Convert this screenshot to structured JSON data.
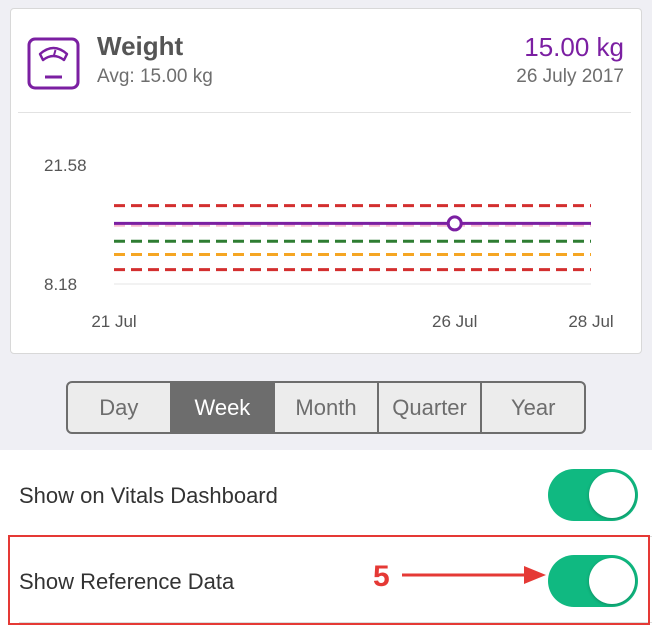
{
  "header": {
    "title": "Weight",
    "avg": "Avg: 15.00 kg",
    "value": "15.00 kg",
    "date": "26 July 2017"
  },
  "chart_data": {
    "type": "line",
    "y_ticks": [
      "21.58",
      "8.18"
    ],
    "x_ticks": [
      "21 Jul",
      "26 Jul",
      "28 Jul"
    ],
    "ylim": [
      8.18,
      21.58
    ],
    "series": [
      {
        "x": [
          "21 Jul",
          "26 Jul",
          "28 Jul"
        ],
        "values": [
          15.0,
          15.0,
          15.0
        ],
        "color": "#7b1fa2"
      }
    ],
    "marker": {
      "x": "26 Jul",
      "value": 15.0
    },
    "reference_lines": [
      {
        "value": 17.0,
        "color": "#d32f2f"
      },
      {
        "value": 14.8,
        "color": "#f8bbd0"
      },
      {
        "value": 13.0,
        "color": "#2e7d32"
      },
      {
        "value": 11.5,
        "color": "#f5a623"
      },
      {
        "value": 9.8,
        "color": "#d32f2f"
      }
    ]
  },
  "segments": [
    "Day",
    "Week",
    "Month",
    "Quarter",
    "Year"
  ],
  "active_segment": "Week",
  "settings": {
    "show_vitals_label": "Show on Vitals Dashboard",
    "show_vitals_on": true,
    "show_reference_label": "Show Reference Data",
    "show_reference_on": true
  },
  "annotation": {
    "number": "5"
  },
  "colors": {
    "accent": "#7b1fa2",
    "toggle": "#10b981",
    "annotation": "#e53935"
  }
}
